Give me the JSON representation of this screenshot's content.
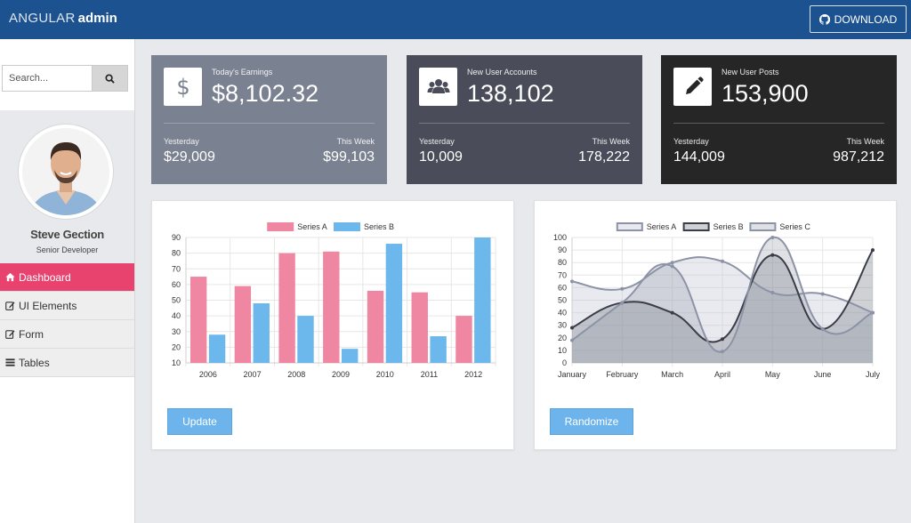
{
  "header": {
    "brand_light": "ANGULAR",
    "brand_bold": "admin",
    "download_label": "DOWNLOAD",
    "colors": {
      "bar": "#1d5290"
    }
  },
  "sidebar": {
    "search": {
      "placeholder": "Search...",
      "icon": "search-icon"
    },
    "profile": {
      "name": "Steve Gection",
      "role": "Senior Developer"
    },
    "items": [
      {
        "label": "Dashboard",
        "icon": "home-icon",
        "active": true
      },
      {
        "label": "UI Elements",
        "icon": "edit-icon",
        "active": false
      },
      {
        "label": "Form",
        "icon": "edit-icon",
        "active": false
      },
      {
        "label": "Tables",
        "icon": "list-icon",
        "active": false
      }
    ]
  },
  "stats": [
    {
      "icon": "dollar-icon",
      "label": "Today's Earnings",
      "value": "$8,102.32",
      "yesterday_label": "Yesterday",
      "yesterday": "$29,009",
      "week_label": "This Week",
      "week": "$99,103",
      "color": "#7a8190"
    },
    {
      "icon": "users-icon",
      "label": "New User Accounts",
      "value": "138,102",
      "yesterday_label": "Yesterday",
      "yesterday": "10,009",
      "week_label": "This Week",
      "week": "178,222",
      "color": "#4a4d59"
    },
    {
      "icon": "pencil-icon",
      "label": "New User Posts",
      "value": "153,900",
      "yesterday_label": "Yesterday",
      "yesterday": "144,009",
      "week_label": "This Week",
      "week": "987,212",
      "color": "#262626"
    }
  ],
  "buttons": {
    "update": "Update",
    "randomize": "Randomize"
  },
  "chart_data": [
    {
      "type": "bar",
      "categories": [
        "2006",
        "2007",
        "2008",
        "2009",
        "2010",
        "2011",
        "2012"
      ],
      "series": [
        {
          "name": "Series A",
          "values": [
            65,
            59,
            80,
            81,
            56,
            55,
            40
          ],
          "color": "#ef87a3"
        },
        {
          "name": "Series B",
          "values": [
            28,
            48,
            40,
            19,
            86,
            27,
            90
          ],
          "color": "#6cb7ec"
        }
      ],
      "ylim": [
        10,
        90
      ],
      "yticks": [
        10,
        20,
        30,
        40,
        50,
        60,
        70,
        80,
        90
      ],
      "legend": "top",
      "grid": true
    },
    {
      "type": "area",
      "categories": [
        "January",
        "February",
        "March",
        "April",
        "May",
        "June",
        "July"
      ],
      "series": [
        {
          "name": "Series A",
          "values": [
            65,
            59,
            80,
            81,
            56,
            55,
            40
          ],
          "color": "#8c93a6",
          "fill": "rgba(190,196,208,0.35)"
        },
        {
          "name": "Series B",
          "values": [
            28,
            48,
            40,
            19,
            86,
            27,
            90
          ],
          "color": "#3a3d47",
          "fill": "rgba(120,124,136,0.35)"
        },
        {
          "name": "Series C",
          "values": [
            18,
            48,
            77,
            9,
            100,
            27,
            40
          ],
          "color": "#8c93a6",
          "fill": "rgba(150,156,170,0.3)"
        }
      ],
      "ylim": [
        0,
        100
      ],
      "yticks": [
        0,
        10,
        20,
        30,
        40,
        50,
        60,
        70,
        80,
        90,
        100
      ],
      "legend": "top",
      "grid": true
    }
  ]
}
